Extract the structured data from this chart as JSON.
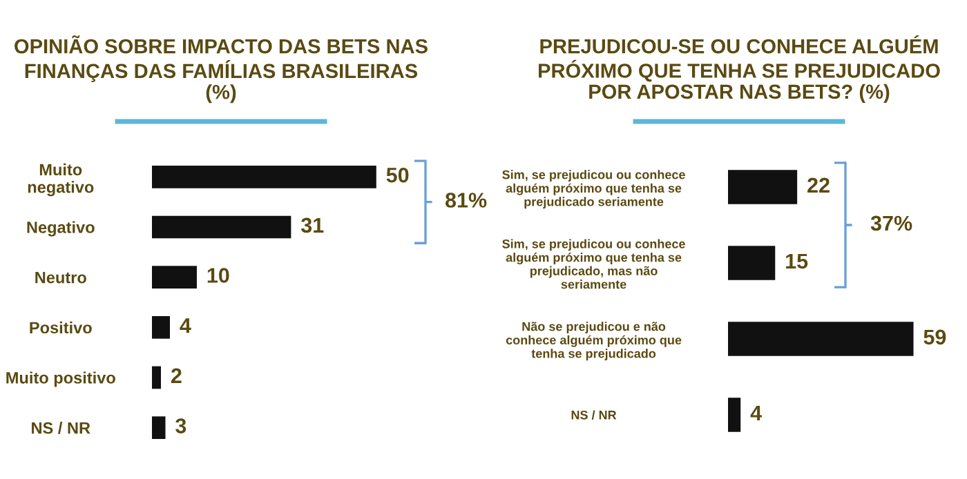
{
  "chart_data": [
    {
      "type": "bar",
      "orientation": "horizontal",
      "title": "OPINIÃO SOBRE IMPACTO DAS BETS NAS\nFINANÇAS DAS FAMÍLIAS BRASILEIRAS\n(%)",
      "categories": [
        "Muito\nnegativo",
        "Negativo",
        "Neutro",
        "Positivo",
        "Muito positivo",
        "NS / NR"
      ],
      "values": [
        50,
        31,
        10,
        4,
        2,
        3
      ],
      "color": "#111111",
      "data_labels": true,
      "tick_labels": "y",
      "annotations": [
        "81%"
      ]
    },
    {
      "type": "bar",
      "orientation": "horizontal",
      "title": "PREJUDICOU-SE OU CONHECE ALGUÉM\nPRÓXIMO QUE TENHA SE PREJUDICADO\nPOR APOSTAR NAS BETS? (%)",
      "categories": [
        "Sim, se prejudicou ou conhece\nalguém próximo que tenha se\nprejudicado seriamente",
        "Sim, se prejudicou ou conhece\nalguém próximo que tenha se\nprejudicado, mas não\nseriamente",
        "Não se prejudicou e não\nconhece alguém próximo que\ntenha se prejudicado",
        "NS / NR"
      ],
      "values": [
        22,
        15,
        59,
        4
      ],
      "color": "#111111",
      "data_labels": true,
      "tick_labels": "y",
      "annotations": [
        "37%"
      ]
    }
  ]
}
